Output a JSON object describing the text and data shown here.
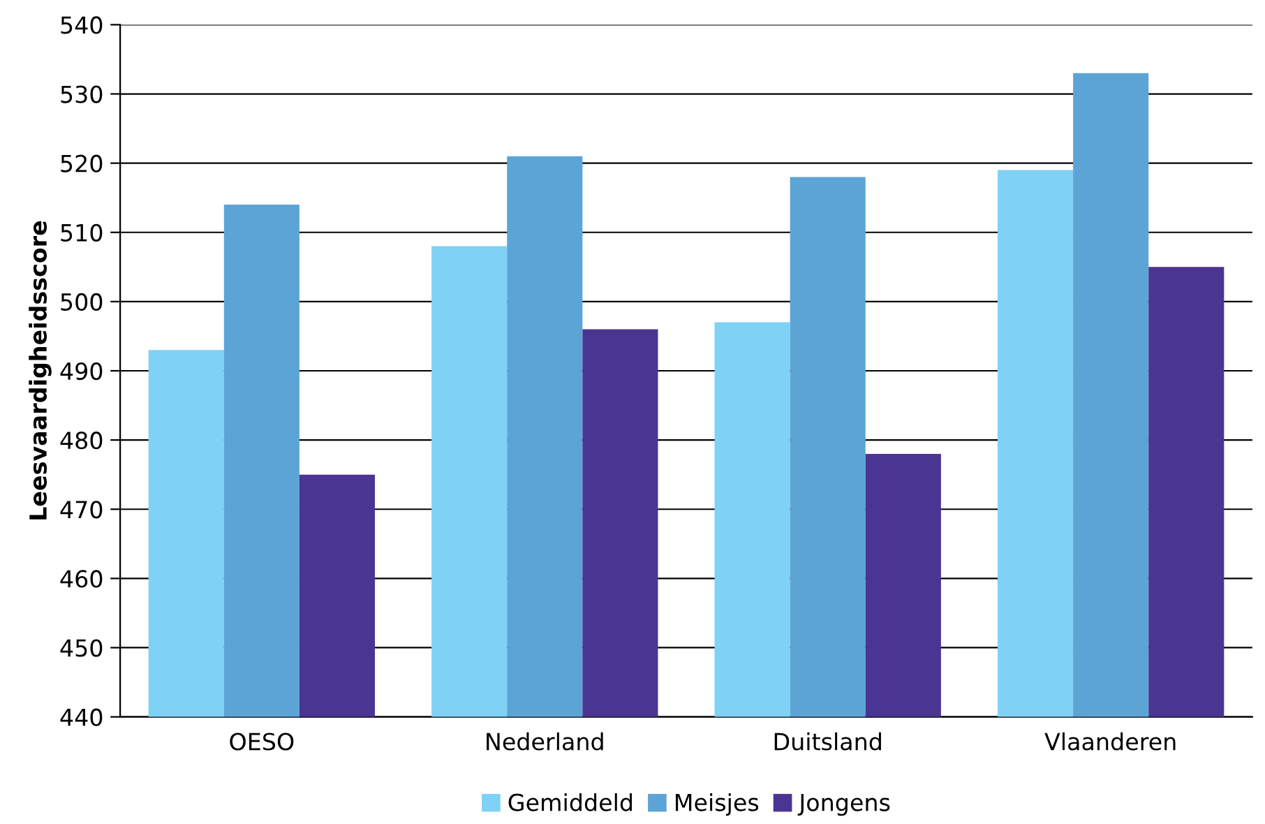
{
  "chart_data": {
    "type": "bar",
    "ylabel": "Leesvaardigheidsscore",
    "categories": [
      "OESO",
      "Nederland",
      "Duitsland",
      "Vlaanderen"
    ],
    "series": [
      {
        "name": "Gemiddeld",
        "color": "#7fd1f6",
        "values": [
          493,
          508,
          497,
          519
        ]
      },
      {
        "name": "Meisjes",
        "color": "#5da4d6",
        "values": [
          514,
          521,
          518,
          533
        ]
      },
      {
        "name": "Jongens",
        "color": "#4b3592",
        "values": [
          475,
          496,
          478,
          505
        ]
      }
    ],
    "ylim": [
      440,
      540
    ],
    "yticks": [
      440,
      450,
      460,
      470,
      480,
      490,
      500,
      510,
      520,
      530,
      540
    ],
    "grid": "y",
    "legend": "bottom"
  }
}
